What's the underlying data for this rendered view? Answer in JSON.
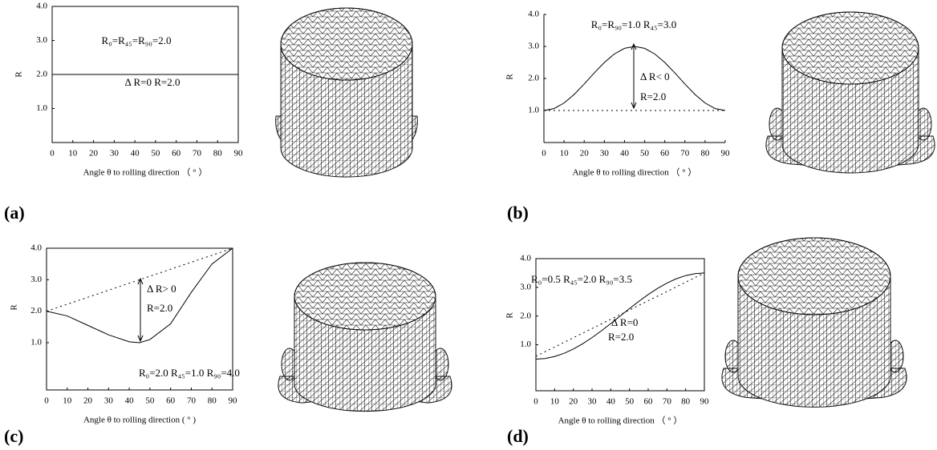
{
  "chart_data": [
    {
      "type": "line",
      "panel_label": "(a)",
      "x_label": "Angle θ  to rolling direction （ ° ）",
      "y_label": "R",
      "xlim": [
        0,
        90
      ],
      "xticks": [
        0,
        10,
        20,
        30,
        40,
        50,
        60,
        70,
        80,
        90
      ],
      "ylim": [
        0,
        4
      ],
      "yticks": [
        {
          "value": 1,
          "label": "1.0"
        },
        {
          "value": 2,
          "label": "2.0"
        },
        {
          "value": 3,
          "label": "3.0"
        },
        {
          "value": 4,
          "label": "4.0"
        }
      ],
      "series": [
        {
          "style": "solid",
          "color": "#000000",
          "x": [
            0,
            90
          ],
          "values": [
            2,
            2
          ]
        }
      ],
      "annotations": [
        "R₀=R₄₅=R₉₀=2.0",
        "Δ R=0  R=2.0"
      ]
    },
    {
      "type": "line",
      "panel_label": "(b)",
      "x_label": "Angle θ  to rolling direction （ ° ）",
      "y_label": "R",
      "xlim": [
        0,
        90
      ],
      "xticks": [
        0,
        10,
        20,
        30,
        40,
        50,
        60,
        70,
        80,
        90
      ],
      "ylim": [
        0,
        4
      ],
      "yticks": [
        {
          "value": 1,
          "label": "1.0"
        },
        {
          "value": 2,
          "label": "2.0"
        },
        {
          "value": 3,
          "label": "3.0"
        },
        {
          "value": 4,
          "label": "4.0"
        }
      ],
      "series": [
        {
          "style": "solid",
          "color": "#000000",
          "x": [
            0,
            5,
            10,
            15,
            20,
            25,
            30,
            35,
            40,
            45,
            50,
            55,
            60,
            65,
            70,
            75,
            80,
            85,
            90
          ],
          "values": [
            1,
            1.06,
            1.234,
            1.5,
            1.826,
            2.174,
            2.5,
            2.766,
            2.94,
            3,
            2.94,
            2.766,
            2.5,
            2.174,
            1.826,
            1.5,
            1.234,
            1.06,
            1
          ]
        },
        {
          "style": "dashed",
          "color": "#000000",
          "x": [
            0,
            90
          ],
          "values": [
            1,
            1
          ]
        }
      ],
      "annotations": [
        "R₀=R₉₀=1.0    R₄₅=3.0",
        "Δ R< 0",
        "R=2.0"
      ]
    },
    {
      "type": "line",
      "panel_label": "(c)",
      "x_label": "Angle  θ  to rolling direction ( ° )",
      "y_label": "R",
      "xlim": [
        0,
        90
      ],
      "xticks": [
        0,
        10,
        20,
        30,
        40,
        50,
        60,
        70,
        80,
        90
      ],
      "ylim": [
        -0.5,
        4
      ],
      "yticks": [
        {
          "value": 1,
          "label": "1.0"
        },
        {
          "value": 2,
          "label": "2.0"
        },
        {
          "value": 3,
          "label": "3.0"
        },
        {
          "value": 4,
          "label": "4.0"
        }
      ],
      "series": [
        {
          "style": "solid",
          "color": "#000000",
          "x": [
            0,
            10,
            20,
            30,
            40,
            45,
            50,
            60,
            70,
            80,
            90
          ],
          "values": [
            2.0,
            1.85,
            1.55,
            1.25,
            1.03,
            1.0,
            1.1,
            1.6,
            2.6,
            3.5,
            4.0
          ]
        },
        {
          "style": "dashed",
          "color": "#000000",
          "x": [
            0,
            90
          ],
          "values": [
            2,
            4
          ]
        }
      ],
      "annotations": [
        "Δ R> 0",
        "R=2.0",
        "R₀=2.0    R₄₅=1.0    R₉₀=4.0"
      ]
    },
    {
      "type": "line",
      "panel_label": "(d)",
      "x_label": "Angle  θ  to rolling direction  （ ° ）",
      "y_label": "R",
      "xlim": [
        0,
        90
      ],
      "xticks": [
        0,
        10,
        20,
        30,
        40,
        50,
        60,
        70,
        80,
        90
      ],
      "ylim": [
        -0.6,
        4
      ],
      "yticks": [
        {
          "value": 1,
          "label": "1.0"
        },
        {
          "value": 2,
          "label": "2.0"
        },
        {
          "value": 3,
          "label": "3.0"
        },
        {
          "value": 4,
          "label": "4.0"
        }
      ],
      "series": [
        {
          "style": "solid",
          "color": "#000000",
          "x": [
            0,
            5,
            10,
            15,
            20,
            25,
            30,
            35,
            40,
            45,
            50,
            55,
            60,
            65,
            70,
            75,
            80,
            85,
            90
          ],
          "values": [
            0.5,
            0.523,
            0.591,
            0.701,
            0.851,
            1.036,
            1.25,
            1.487,
            1.739,
            2,
            2.261,
            2.513,
            2.75,
            2.964,
            3.149,
            3.299,
            3.409,
            3.477,
            3.5
          ]
        },
        {
          "style": "dashed",
          "color": "#000000",
          "x": [
            0,
            90
          ],
          "values": [
            0.6,
            3.5
          ]
        }
      ],
      "annotations": [
        "R₀=0.5   R₄₅=2.0   R₉₀=3.5",
        "Δ R=0",
        "R=2.0"
      ]
    }
  ]
}
